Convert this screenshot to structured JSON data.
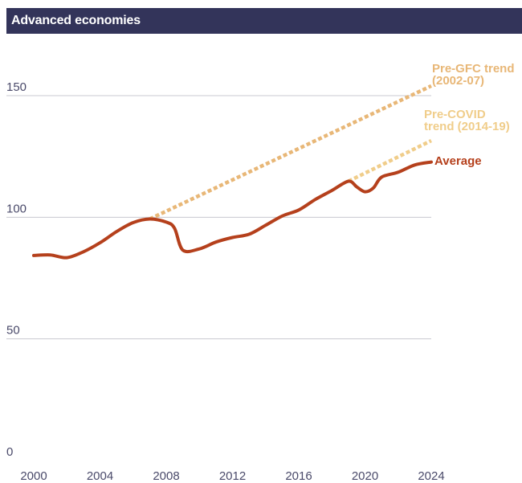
{
  "header": {
    "title": "Advanced economies"
  },
  "colors": {
    "header_bg": "#33345a",
    "average": "#b5401c",
    "pre_gfc": "#e8b777",
    "pre_covid": "#f0cd8a",
    "grid": "#c8c8d0",
    "tick_text": "#4a4a6a"
  },
  "chart_data": {
    "type": "line",
    "title": "Advanced economies",
    "xlabel": "",
    "ylabel": "",
    "xlim": [
      2000,
      2024
    ],
    "ylim": [
      0,
      160
    ],
    "x_ticks": [
      2000,
      2004,
      2008,
      2012,
      2016,
      2020,
      2024
    ],
    "y_ticks": [
      0,
      50,
      100,
      150
    ],
    "grid": "horizontal",
    "series": [
      {
        "name": "Average",
        "style": "solid",
        "x": [
          2000,
          2001,
          2002,
          2003,
          2004,
          2005,
          2006,
          2007,
          2008,
          2008.5,
          2009,
          2010,
          2011,
          2012,
          2013,
          2014,
          2015,
          2016,
          2017,
          2018,
          2019,
          2019.5,
          2020,
          2020.5,
          2021,
          2022,
          2023,
          2024
        ],
        "y": [
          84.3,
          84.5,
          83.4,
          85.8,
          89.5,
          94.1,
          97.8,
          99.3,
          98.0,
          95.5,
          86.5,
          87.0,
          89.8,
          91.7,
          93.0,
          96.7,
          100.5,
          103.0,
          107.3,
          111.0,
          114.8,
          112.5,
          110.5,
          112.0,
          116.5,
          118.5,
          121.5,
          122.7
        ]
      },
      {
        "name": "Pre-GFC trend (2002-07)",
        "style": "dashed",
        "x": [
          2007,
          2024
        ],
        "y": [
          99.3,
          154.0
        ]
      },
      {
        "name": "Pre-COVID trend (2014-19)",
        "style": "dashed",
        "x": [
          2019,
          2024
        ],
        "y": [
          114.8,
          131.5
        ]
      }
    ],
    "annotations": [
      {
        "series": "Pre-GFC trend (2002-07)",
        "lines": [
          "Pre-GFC trend",
          "(2002-07)"
        ]
      },
      {
        "series": "Pre-COVID trend (2014-19)",
        "lines": [
          "Pre-COVID",
          "trend (2014-19)"
        ]
      },
      {
        "series": "Average",
        "lines": [
          "Average"
        ]
      }
    ]
  }
}
